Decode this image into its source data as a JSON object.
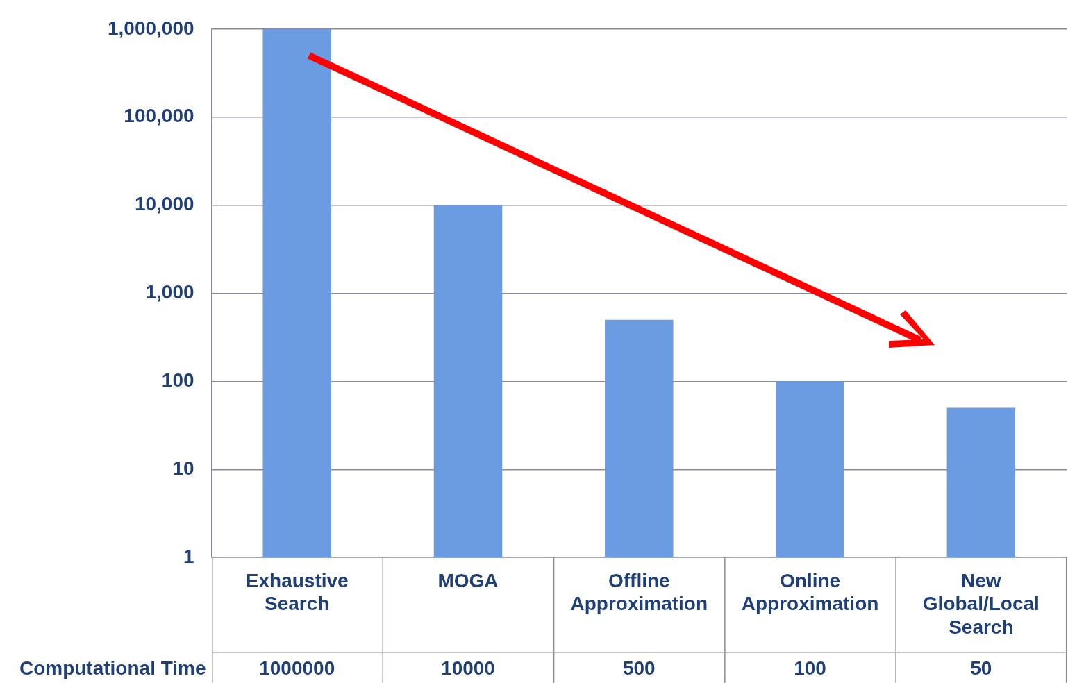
{
  "chart_data": {
    "type": "bar",
    "categories": [
      "Exhaustive Search",
      "MOGA",
      "Offline Approximation",
      "Online Approximation",
      "New Global/Local Search"
    ],
    "series": [
      {
        "name": "Computational Time",
        "color": "#6b9be0",
        "values": [
          1000000,
          10000,
          500,
          100,
          50
        ]
      }
    ],
    "log": "y",
    "ylim": [
      1,
      1000000
    ],
    "yticks": [
      {
        "value": 1,
        "label": "1"
      },
      {
        "value": 10,
        "label": "10"
      },
      {
        "value": 100,
        "label": "100"
      },
      {
        "value": 1000,
        "label": "1,000"
      },
      {
        "value": 10000,
        "label": "10,000"
      },
      {
        "value": 100000,
        "label": "100,000"
      },
      {
        "value": 1000000,
        "label": "1,000,000"
      }
    ],
    "grid": "y",
    "legend": false,
    "data_labels": true
  }
}
